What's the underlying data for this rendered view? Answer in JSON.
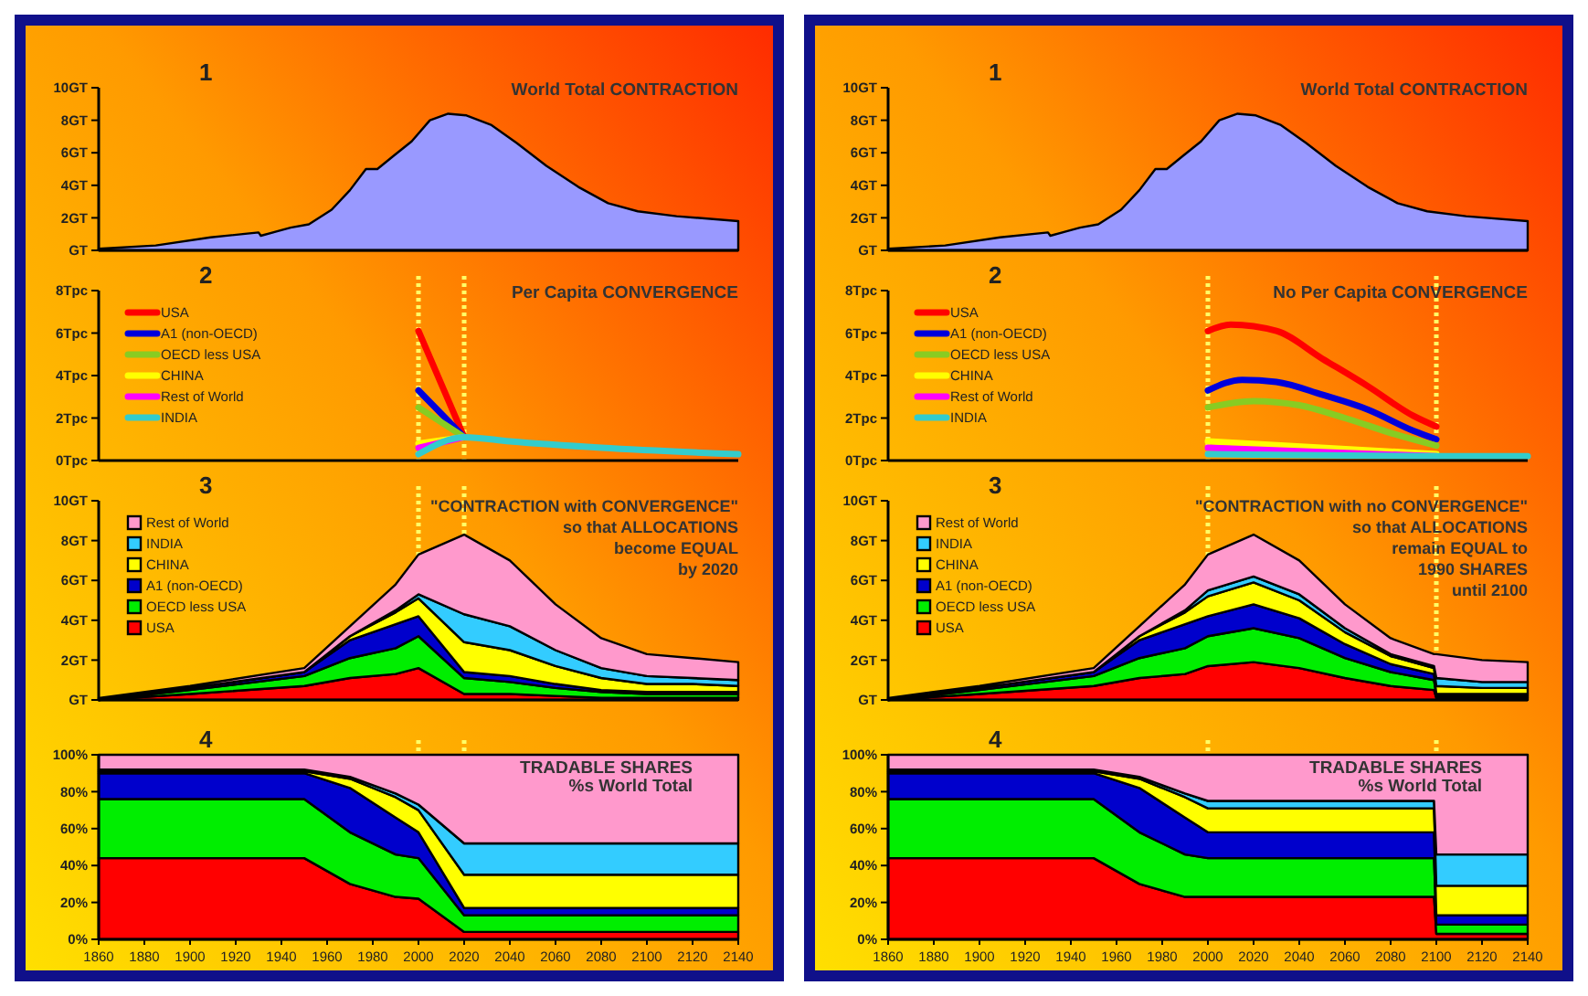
{
  "chart_data": [
    {
      "type": "area",
      "title": "1",
      "subtitle": "World Total CONTRACTION",
      "xlim": [
        1860,
        2140
      ],
      "ylim": [
        0,
        10
      ],
      "tick_labels": "y",
      "yticks": [
        {
          "value": 0,
          "label": "GT"
        },
        {
          "value": 2,
          "label": "2GT"
        },
        {
          "value": 4,
          "label": "4GT"
        },
        {
          "value": 6,
          "label": "6GT"
        },
        {
          "value": 8,
          "label": "8GT"
        },
        {
          "value": 10,
          "label": "10GT"
        }
      ],
      "x": [
        1860,
        1885,
        1909,
        1930,
        1931,
        1944,
        1952,
        1962,
        1970,
        1977,
        1982,
        1989,
        1997,
        2005,
        2013,
        2021,
        2032,
        2043,
        2056,
        2070,
        2083,
        2096,
        2113,
        2140
      ],
      "series": [
        {
          "color": "#9999ff",
          "values": [
            0.1,
            0.3,
            0.8,
            1.1,
            0.9,
            1.4,
            1.6,
            2.5,
            3.7,
            5.0,
            5.0,
            5.8,
            6.7,
            8.0,
            8.4,
            8.3,
            7.7,
            6.6,
            5.2,
            3.9,
            2.9,
            2.4,
            2.1,
            1.8
          ]
        }
      ]
    },
    {
      "type": "line",
      "title": "2",
      "subtitle": "Per Capita CONVERGENCE",
      "xlim": [
        1860,
        2140
      ],
      "ylim": [
        0,
        8
      ],
      "tick_labels": "y",
      "legend": "top left",
      "yticks": [
        {
          "value": 0,
          "label": "0Tpc"
        },
        {
          "value": 2,
          "label": "2Tpc"
        },
        {
          "value": 4,
          "label": "4Tpc"
        },
        {
          "value": 6,
          "label": "6Tpc"
        },
        {
          "value": 8,
          "label": "8Tpc"
        }
      ],
      "ref_lines": [
        {
          "axis": "x",
          "value": 2000,
          "color": "#ffff66",
          "line_style": "dotted"
        },
        {
          "axis": "x",
          "value": 2020,
          "color": "#ffff66",
          "line_style": "dotted"
        }
      ],
      "series": [
        {
          "name": "USA",
          "color": "#ff0000",
          "x": [
            2000,
            2020
          ],
          "values": [
            6.1,
            1.1
          ]
        },
        {
          "name": "A1 (non-OECD)",
          "color": "#0000dd",
          "x": [
            2000,
            2020
          ],
          "values": [
            3.3,
            1.1
          ]
        },
        {
          "name": "OECD less USA",
          "color": "#88cc22",
          "x": [
            2000,
            2020
          ],
          "values": [
            2.5,
            1.1
          ]
        },
        {
          "name": "CHINA",
          "color": "#ffff00",
          "x": [
            2000,
            2020
          ],
          "values": [
            0.8,
            1.1
          ]
        },
        {
          "name": "Rest of World",
          "color": "#ff00ff",
          "x": [
            2000,
            2020
          ],
          "values": [
            0.6,
            1.1
          ]
        },
        {
          "name": "INDIA",
          "color": "#33cccc",
          "x": [
            2000,
            2020,
            2040,
            2080,
            2140
          ],
          "values": [
            0.3,
            1.1,
            0.9,
            0.6,
            0.3
          ]
        }
      ]
    },
    {
      "type": "area",
      "stacked": true,
      "title": "3",
      "xlim": [
        1860,
        2140
      ],
      "ylim": [
        0,
        10
      ],
      "tick_labels": "y",
      "legend": "top left",
      "annotations": [
        "\"CONTRACTION with CONVERGENCE\"",
        "so that ALLOCATIONS",
        "become EQUAL",
        "by 2020"
      ],
      "yticks": [
        {
          "value": 0,
          "label": "GT"
        },
        {
          "value": 2,
          "label": "2GT"
        },
        {
          "value": 4,
          "label": "4GT"
        },
        {
          "value": 6,
          "label": "6GT"
        },
        {
          "value": 8,
          "label": "8GT"
        },
        {
          "value": 10,
          "label": "10GT"
        }
      ],
      "ref_lines": [
        {
          "axis": "x",
          "value": 2000,
          "color": "#ffff66",
          "line_style": "dotted"
        },
        {
          "axis": "x",
          "value": 2020,
          "color": "#ffff66",
          "line_style": "dotted"
        }
      ],
      "x": [
        1860,
        1900,
        1950,
        1970,
        1990,
        2000,
        2020,
        2040,
        2060,
        2080,
        2100,
        2120,
        2140
      ],
      "series": [
        {
          "name": "USA",
          "color": "#ff0000",
          "values": [
            0.0,
            0.3,
            0.7,
            1.1,
            1.3,
            1.6,
            0.3,
            0.3,
            0.2,
            0.1,
            0.1,
            0.1,
            0.1
          ]
        },
        {
          "name": "OECD less USA",
          "color": "#00ee00",
          "values": [
            0.0,
            0.2,
            0.5,
            1.0,
            1.3,
            1.6,
            0.8,
            0.6,
            0.4,
            0.3,
            0.2,
            0.2,
            0.2
          ]
        },
        {
          "name": "A1 (non-OECD)",
          "color": "#0000cc",
          "values": [
            0.0,
            0.1,
            0.2,
            0.9,
            1.2,
            1.0,
            0.3,
            0.3,
            0.2,
            0.1,
            0.1,
            0.1,
            0.1
          ]
        },
        {
          "name": "CHINA",
          "color": "#ffff00",
          "values": [
            0.0,
            0.0,
            0.0,
            0.2,
            0.6,
            0.9,
            1.5,
            1.3,
            0.9,
            0.6,
            0.4,
            0.4,
            0.3
          ]
        },
        {
          "name": "INDIA",
          "color": "#33ccff",
          "values": [
            0.0,
            0.0,
            0.0,
            0.0,
            0.1,
            0.2,
            1.4,
            1.2,
            0.8,
            0.5,
            0.4,
            0.3,
            0.3
          ]
        },
        {
          "name": "Rest of World",
          "color": "#ff99cc",
          "values": [
            0.1,
            0.1,
            0.2,
            0.5,
            1.3,
            2.0,
            4.0,
            3.3,
            2.3,
            1.5,
            1.1,
            1.0,
            0.9
          ]
        }
      ]
    },
    {
      "type": "area",
      "stacked": true,
      "title": "4",
      "xlim": [
        1860,
        2140
      ],
      "ylim": [
        0,
        100
      ],
      "annotations": [
        "TRADABLE SHARES",
        "%s World Total"
      ],
      "yticks": [
        {
          "value": 0,
          "label": "0%"
        },
        {
          "value": 20,
          "label": "20%"
        },
        {
          "value": 40,
          "label": "40%"
        },
        {
          "value": 60,
          "label": "60%"
        },
        {
          "value": 80,
          "label": "80%"
        },
        {
          "value": 100,
          "label": "100%"
        }
      ],
      "xticks": [
        1860,
        1880,
        1900,
        1920,
        1940,
        1960,
        1980,
        2000,
        2020,
        2040,
        2060,
        2080,
        2100,
        2120,
        2140
      ],
      "ref_lines": [
        {
          "axis": "x",
          "value": 2000,
          "color": "#ffff66",
          "line_style": "dotted"
        },
        {
          "axis": "x",
          "value": 2020,
          "color": "#ffff66",
          "line_style": "dotted"
        }
      ],
      "x": [
        1860,
        1900,
        1950,
        1970,
        1990,
        2000,
        2020,
        2040,
        2060,
        2080,
        2100,
        2120,
        2140
      ],
      "series": [
        {
          "color": "#ff0000",
          "values": [
            44,
            44,
            44,
            30,
            23,
            22,
            4,
            4,
            4,
            4,
            4,
            4,
            4
          ]
        },
        {
          "color": "#00ee00",
          "values": [
            32,
            32,
            32,
            28,
            23,
            22,
            9,
            9,
            9,
            9,
            9,
            9,
            9
          ]
        },
        {
          "color": "#0000cc",
          "values": [
            14,
            14,
            14,
            24,
            20,
            14,
            4,
            4,
            4,
            4,
            4,
            4,
            4
          ]
        },
        {
          "color": "#ffff00",
          "values": [
            1,
            1,
            1,
            5,
            11,
            12,
            18,
            18,
            18,
            18,
            18,
            18,
            18
          ]
        },
        {
          "color": "#33ccff",
          "values": [
            1,
            1,
            1,
            1,
            2,
            3,
            17,
            17,
            17,
            17,
            17,
            17,
            17
          ]
        },
        {
          "color": "#ff99cc",
          "values": [
            8,
            8,
            8,
            12,
            21,
            27,
            48,
            48,
            48,
            48,
            48,
            48,
            48
          ]
        }
      ]
    },
    {
      "type": "area",
      "title": "1",
      "subtitle": "World Total CONTRACTION",
      "xlim": [
        1860,
        2140
      ],
      "ylim": [
        0,
        10
      ],
      "tick_labels": "y",
      "yticks": [
        {
          "value": 0,
          "label": "GT"
        },
        {
          "value": 2,
          "label": "2GT"
        },
        {
          "value": 4,
          "label": "4GT"
        },
        {
          "value": 6,
          "label": "6GT"
        },
        {
          "value": 8,
          "label": "8GT"
        },
        {
          "value": 10,
          "label": "10GT"
        }
      ],
      "x": [
        1860,
        1885,
        1909,
        1930,
        1931,
        1944,
        1952,
        1962,
        1970,
        1977,
        1982,
        1989,
        1997,
        2005,
        2013,
        2021,
        2032,
        2043,
        2056,
        2070,
        2083,
        2096,
        2113,
        2140
      ],
      "series": [
        {
          "color": "#9999ff",
          "values": [
            0.1,
            0.3,
            0.8,
            1.1,
            0.9,
            1.4,
            1.6,
            2.5,
            3.7,
            5.0,
            5.0,
            5.8,
            6.7,
            8.0,
            8.4,
            8.3,
            7.7,
            6.6,
            5.2,
            3.9,
            2.9,
            2.4,
            2.1,
            1.8
          ]
        }
      ]
    },
    {
      "type": "line",
      "title": "2",
      "subtitle": "No Per Capita CONVERGENCE",
      "xlim": [
        1860,
        2140
      ],
      "ylim": [
        0,
        8
      ],
      "tick_labels": "y",
      "legend": "top left",
      "yticks": [
        {
          "value": 0,
          "label": "0Tpc"
        },
        {
          "value": 2,
          "label": "2Tpc"
        },
        {
          "value": 4,
          "label": "4Tpc"
        },
        {
          "value": 6,
          "label": "6Tpc"
        },
        {
          "value": 8,
          "label": "8Tpc"
        }
      ],
      "ref_lines": [
        {
          "axis": "x",
          "value": 2000,
          "color": "#ffff66",
          "line_style": "dotted"
        },
        {
          "axis": "x",
          "value": 2100,
          "color": "#ffff66",
          "line_style": "dotted"
        }
      ],
      "series": [
        {
          "name": "USA",
          "color": "#ff0000",
          "x": [
            2000,
            2010,
            2030,
            2050,
            2070,
            2090,
            2100
          ],
          "values": [
            6.1,
            6.4,
            6.1,
            4.8,
            3.5,
            2.1,
            1.6
          ]
        },
        {
          "name": "A1 (non-OECD)",
          "color": "#0000dd",
          "x": [
            2000,
            2015,
            2030,
            2050,
            2070,
            2090,
            2100
          ],
          "values": [
            3.3,
            3.8,
            3.7,
            3.1,
            2.4,
            1.4,
            1.0
          ]
        },
        {
          "name": "OECD less USA",
          "color": "#88cc22",
          "x": [
            2000,
            2020,
            2040,
            2060,
            2080,
            2100
          ],
          "values": [
            2.5,
            2.8,
            2.6,
            2.0,
            1.3,
            0.7
          ]
        },
        {
          "name": "CHINA",
          "color": "#ffff00",
          "x": [
            2000,
            2100
          ],
          "values": [
            0.9,
            0.3
          ]
        },
        {
          "name": "Rest of World",
          "color": "#ff00ff",
          "x": [
            2000,
            2100
          ],
          "values": [
            0.6,
            0.2
          ]
        },
        {
          "name": "INDIA",
          "color": "#33cccc",
          "x": [
            2000,
            2100,
            2140
          ],
          "values": [
            0.3,
            0.2,
            0.2
          ]
        }
      ]
    },
    {
      "type": "area",
      "stacked": true,
      "title": "3",
      "xlim": [
        1860,
        2140
      ],
      "ylim": [
        0,
        10
      ],
      "tick_labels": "y",
      "legend": "top left",
      "annotations": [
        "\"CONTRACTION with no CONVERGENCE\"",
        "so that ALLOCATIONS",
        "remain EQUAL to",
        "1990 SHARES",
        "until 2100"
      ],
      "yticks": [
        {
          "value": 0,
          "label": "GT"
        },
        {
          "value": 2,
          "label": "2GT"
        },
        {
          "value": 4,
          "label": "4GT"
        },
        {
          "value": 6,
          "label": "6GT"
        },
        {
          "value": 8,
          "label": "8GT"
        },
        {
          "value": 10,
          "label": "10GT"
        }
      ],
      "ref_lines": [
        {
          "axis": "x",
          "value": 2000,
          "color": "#ffff66",
          "line_style": "dotted"
        },
        {
          "axis": "x",
          "value": 2100,
          "color": "#ffff66",
          "line_style": "dotted"
        }
      ],
      "x": [
        1860,
        1900,
        1950,
        1970,
        1990,
        2000,
        2020,
        2040,
        2060,
        2080,
        2099,
        2100,
        2120,
        2140
      ],
      "series": [
        {
          "name": "USA",
          "color": "#ff0000",
          "values": [
            0.0,
            0.3,
            0.7,
            1.1,
            1.3,
            1.7,
            1.9,
            1.6,
            1.1,
            0.7,
            0.5,
            0.1,
            0.1,
            0.1
          ]
        },
        {
          "name": "OECD less USA",
          "color": "#00ee00",
          "values": [
            0.0,
            0.2,
            0.5,
            1.0,
            1.3,
            1.5,
            1.7,
            1.5,
            1.0,
            0.7,
            0.5,
            0.1,
            0.1,
            0.1
          ]
        },
        {
          "name": "A1 (non-OECD)",
          "color": "#0000cc",
          "values": [
            0.0,
            0.1,
            0.2,
            0.9,
            1.2,
            1.0,
            1.2,
            1.0,
            0.7,
            0.4,
            0.3,
            0.1,
            0.1,
            0.1
          ]
        },
        {
          "name": "CHINA",
          "color": "#ffff00",
          "values": [
            0.0,
            0.0,
            0.0,
            0.2,
            0.6,
            1.0,
            1.1,
            0.9,
            0.6,
            0.4,
            0.3,
            0.4,
            0.3,
            0.3
          ]
        },
        {
          "name": "INDIA",
          "color": "#33ccff",
          "values": [
            0.0,
            0.0,
            0.0,
            0.0,
            0.1,
            0.3,
            0.3,
            0.3,
            0.2,
            0.1,
            0.1,
            0.4,
            0.3,
            0.3
          ]
        },
        {
          "name": "Rest of World",
          "color": "#ff99cc",
          "values": [
            0.1,
            0.1,
            0.2,
            0.5,
            1.3,
            1.8,
            2.1,
            1.7,
            1.2,
            0.8,
            0.6,
            1.2,
            1.1,
            1.0
          ]
        }
      ]
    },
    {
      "type": "area",
      "stacked": true,
      "title": "4",
      "xlim": [
        1860,
        2140
      ],
      "ylim": [
        0,
        100
      ],
      "annotations": [
        "TRADABLE SHARES",
        "%s World Total"
      ],
      "yticks": [
        {
          "value": 0,
          "label": "0%"
        },
        {
          "value": 20,
          "label": "20%"
        },
        {
          "value": 40,
          "label": "40%"
        },
        {
          "value": 60,
          "label": "60%"
        },
        {
          "value": 80,
          "label": "80%"
        },
        {
          "value": 100,
          "label": "100%"
        }
      ],
      "xticks": [
        1860,
        1880,
        1900,
        1920,
        1940,
        1960,
        1980,
        2000,
        2020,
        2040,
        2060,
        2080,
        2100,
        2120,
        2140
      ],
      "ref_lines": [
        {
          "axis": "x",
          "value": 2000,
          "color": "#ffff66",
          "line_style": "dotted"
        },
        {
          "axis": "x",
          "value": 2100,
          "color": "#ffff66",
          "line_style": "dotted"
        }
      ],
      "x": [
        1860,
        1900,
        1950,
        1970,
        1990,
        2000,
        2020,
        2040,
        2060,
        2080,
        2099,
        2100,
        2120,
        2140
      ],
      "series": [
        {
          "color": "#ff0000",
          "values": [
            44,
            44,
            44,
            30,
            23,
            23,
            23,
            23,
            23,
            23,
            23,
            3,
            3,
            3
          ]
        },
        {
          "color": "#00ee00",
          "values": [
            32,
            32,
            32,
            28,
            23,
            21,
            21,
            21,
            21,
            21,
            21,
            5,
            5,
            5
          ]
        },
        {
          "color": "#0000cc",
          "values": [
            14,
            14,
            14,
            24,
            20,
            14,
            14,
            14,
            14,
            14,
            14,
            5,
            5,
            5
          ]
        },
        {
          "color": "#ffff00",
          "values": [
            1,
            1,
            1,
            5,
            11,
            13,
            13,
            13,
            13,
            13,
            13,
            16,
            16,
            16
          ]
        },
        {
          "color": "#33ccff",
          "values": [
            1,
            1,
            1,
            1,
            2,
            4,
            4,
            4,
            4,
            4,
            4,
            17,
            17,
            17
          ]
        },
        {
          "color": "#ff99cc",
          "values": [
            8,
            8,
            8,
            12,
            21,
            25,
            25,
            25,
            25,
            25,
            25,
            54,
            54,
            54
          ]
        }
      ]
    }
  ]
}
